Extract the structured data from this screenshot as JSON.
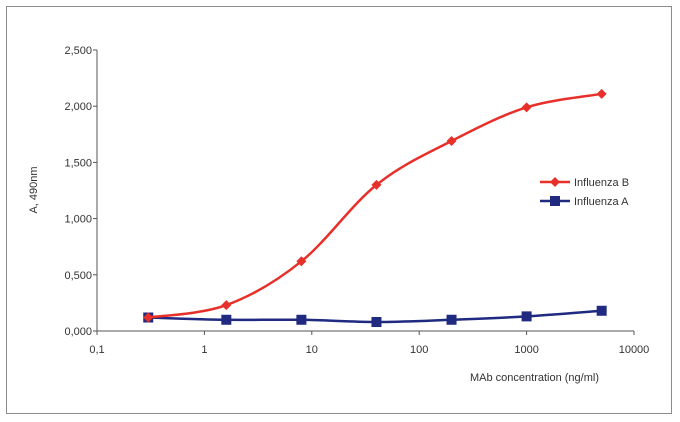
{
  "chart_data": {
    "type": "line",
    "xscale": "log",
    "x": [
      0.3,
      1.6,
      8,
      40,
      200,
      1000,
      5000
    ],
    "xticks": [
      "0,1",
      "1",
      "10",
      "100",
      "1000",
      "10000"
    ],
    "yticks": [
      "0,000",
      "0,500",
      "1,000",
      "1,500",
      "2,000",
      "2,500"
    ],
    "xlim": [
      0.1,
      10000
    ],
    "ylim": [
      0,
      2.5
    ],
    "xlabel": "MAb concentration (ng/ml)",
    "ylabel": "A, 490nm",
    "grid": false,
    "legend_position": "right",
    "series": [
      {
        "name": "Influenza B",
        "color": "#e8302a",
        "marker": "diamond",
        "values": [
          0.12,
          0.23,
          0.62,
          1.3,
          1.69,
          1.99,
          2.11
        ]
      },
      {
        "name": "Influenza A",
        "color": "#1f2a80",
        "marker": "square",
        "values": [
          0.12,
          0.1,
          0.1,
          0.08,
          0.1,
          0.13,
          0.18
        ]
      }
    ]
  }
}
